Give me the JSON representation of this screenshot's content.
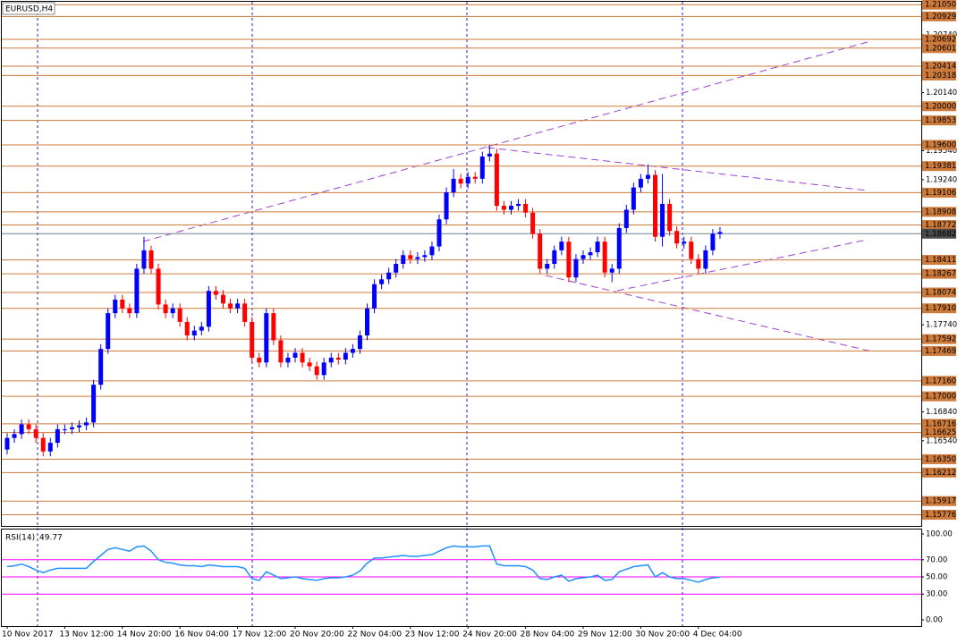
{
  "chart_data": {
    "type": "candlestick",
    "title": "EURUSD,H4",
    "categories": [
      "10 Nov 2017",
      null,
      null,
      null,
      null,
      null,
      null,
      null,
      "13 Nov 12:00",
      null,
      null,
      null,
      null,
      null,
      null,
      null,
      "14 Nov 20:00",
      null,
      null,
      null,
      null,
      null,
      null,
      null,
      "16 Nov 04:00",
      null,
      null,
      null,
      null,
      null,
      null,
      null,
      "17 Nov 12:00",
      null,
      null,
      null,
      null,
      null,
      null,
      null,
      "20 Nov 20:00",
      null,
      null,
      null,
      null,
      null,
      null,
      null,
      "22 Nov 04:00",
      null,
      null,
      null,
      null,
      null,
      null,
      null,
      "23 Nov 12:00",
      null,
      null,
      null,
      null,
      null,
      null,
      null,
      "24 Nov 20:00",
      null,
      null,
      null,
      null,
      null,
      null,
      null,
      "28 Nov 04:00",
      null,
      null,
      null,
      null,
      null,
      null,
      null,
      "29 Nov 12:00",
      null,
      null,
      null,
      null,
      null,
      null,
      null,
      "30 Nov 20:00",
      null,
      null,
      null,
      null,
      null,
      null,
      null,
      "4 Dec 04:00",
      null,
      null,
      null
    ],
    "open": [
      1.1645,
      1.1657,
      1.1661,
      1.1671,
      1.1666,
      1.1657,
      1.1643,
      1.1652,
      1.1666,
      1.1666,
      1.1668,
      1.167,
      1.1673,
      1.1712,
      1.1749,
      1.1786,
      1.18,
      1.1791,
      1.1786,
      1.1832,
      1.1851,
      1.1832,
      1.1795,
      1.1786,
      1.1791,
      1.1777,
      1.1763,
      1.1768,
      1.1772,
      1.1809,
      1.1805,
      1.1796,
      1.1791,
      1.1796,
      1.1777,
      1.174,
      1.1735,
      1.1786,
      1.1758,
      1.1735,
      1.174,
      1.1745,
      1.1735,
      1.1731,
      1.1722,
      1.1735,
      1.174,
      1.1738,
      1.1745,
      1.1749,
      1.1763,
      1.1791,
      1.1816,
      1.1821,
      1.1828,
      1.1837,
      1.1846,
      1.1842,
      1.1844,
      1.1846,
      1.1855,
      1.1883,
      1.1911,
      1.1925,
      1.192,
      1.1927,
      1.1925,
      1.1948,
      1.1951,
      1.1897,
      1.1893,
      1.1897,
      1.1899,
      1.189,
      1.1868,
      1.1832,
      1.1837,
      1.1851,
      1.186,
      1.1823,
      1.1842,
      1.1846,
      1.1849,
      1.186,
      1.1828,
      1.1832,
      1.1874,
      1.1893,
      1.1916,
      1.1925,
      1.1929,
      1.1865,
      1.1899,
      1.1871,
      1.1858,
      1.186,
      1.1842,
      1.1832,
      1.1851,
      1.1868
    ],
    "high": [
      1.1662,
      1.1666,
      1.1676,
      1.1676,
      1.1671,
      1.1662,
      1.1657,
      1.1671,
      1.1671,
      1.1673,
      1.1675,
      1.1678,
      1.1717,
      1.1754,
      1.1791,
      1.1805,
      1.1805,
      1.1796,
      1.1837,
      1.1865,
      1.1856,
      1.1837,
      1.18,
      1.1796,
      1.1796,
      1.1782,
      1.1773,
      1.1777,
      1.1814,
      1.1814,
      1.181,
      1.1801,
      1.1801,
      1.1801,
      1.1782,
      1.1745,
      1.1791,
      1.1791,
      1.1763,
      1.1745,
      1.175,
      1.175,
      1.174,
      1.1736,
      1.174,
      1.1745,
      1.1745,
      1.175,
      1.1754,
      1.1768,
      1.1796,
      1.1821,
      1.1826,
      1.1833,
      1.1842,
      1.1851,
      1.1851,
      1.1849,
      1.1851,
      1.186,
      1.1888,
      1.1916,
      1.1935,
      1.193,
      1.1932,
      1.1932,
      1.1953,
      1.196,
      1.1956,
      1.1902,
      1.1902,
      1.1904,
      1.1904,
      1.1895,
      1.1873,
      1.1842,
      1.1856,
      1.1865,
      1.1865,
      1.1847,
      1.1851,
      1.1854,
      1.1865,
      1.1865,
      1.1837,
      1.1879,
      1.1898,
      1.1921,
      1.193,
      1.194,
      1.1934,
      1.193,
      1.1904,
      1.1876,
      1.1865,
      1.1865,
      1.1847,
      1.1856,
      1.1873,
      1.1875
    ],
    "low": [
      1.164,
      1.1652,
      1.1656,
      1.1661,
      1.1652,
      1.1638,
      1.1638,
      1.1647,
      1.1661,
      1.1661,
      1.1663,
      1.1665,
      1.1668,
      1.1707,
      1.1744,
      1.1781,
      1.1786,
      1.1781,
      1.1781,
      1.1827,
      1.1827,
      1.179,
      1.1781,
      1.1781,
      1.1772,
      1.1758,
      1.1758,
      1.1763,
      1.1767,
      1.18,
      1.1791,
      1.1786,
      1.1786,
      1.1772,
      1.1735,
      1.173,
      1.173,
      1.1753,
      1.173,
      1.173,
      1.1735,
      1.173,
      1.1726,
      1.1717,
      1.1717,
      1.173,
      1.1733,
      1.1733,
      1.174,
      1.1744,
      1.1758,
      1.1786,
      1.1811,
      1.1816,
      1.1823,
      1.1832,
      1.1837,
      1.1837,
      1.1839,
      1.1841,
      1.185,
      1.1878,
      1.1906,
      1.1915,
      1.1915,
      1.192,
      1.192,
      1.1943,
      1.1892,
      1.1888,
      1.1888,
      1.1892,
      1.1885,
      1.1863,
      1.1827,
      1.1827,
      1.1832,
      1.1846,
      1.1818,
      1.1818,
      1.1837,
      1.1841,
      1.1844,
      1.1823,
      1.1818,
      1.1827,
      1.1869,
      1.1888,
      1.1911,
      1.192,
      1.186,
      1.1855,
      1.1866,
      1.1853,
      1.1853,
      1.1837,
      1.1827,
      1.1827,
      1.1846,
      1.1863
    ],
    "close": [
      1.1657,
      1.1661,
      1.1671,
      1.1666,
      1.1657,
      1.1643,
      1.1652,
      1.1666,
      1.1666,
      1.1668,
      1.167,
      1.1673,
      1.1712,
      1.1749,
      1.1786,
      1.18,
      1.1791,
      1.1786,
      1.1832,
      1.1851,
      1.1832,
      1.1795,
      1.1786,
      1.1791,
      1.1777,
      1.1763,
      1.1768,
      1.1772,
      1.1809,
      1.1805,
      1.1796,
      1.1791,
      1.1796,
      1.1777,
      1.174,
      1.1735,
      1.1786,
      1.1758,
      1.1735,
      1.174,
      1.1745,
      1.1735,
      1.1731,
      1.1722,
      1.1735,
      1.174,
      1.1738,
      1.1745,
      1.1749,
      1.1763,
      1.1791,
      1.1816,
      1.1821,
      1.1828,
      1.1837,
      1.1846,
      1.1842,
      1.1844,
      1.1846,
      1.1855,
      1.1883,
      1.1911,
      1.1925,
      1.192,
      1.1927,
      1.1925,
      1.1948,
      1.1951,
      1.1897,
      1.1893,
      1.1897,
      1.1899,
      1.189,
      1.1868,
      1.1832,
      1.1837,
      1.1851,
      1.186,
      1.1823,
      1.1842,
      1.1846,
      1.1849,
      1.186,
      1.1828,
      1.1832,
      1.1874,
      1.1893,
      1.1916,
      1.1925,
      1.1929,
      1.1865,
      1.1899,
      1.1871,
      1.1858,
      1.186,
      1.1842,
      1.1832,
      1.1851,
      1.1868,
      1.187
    ],
    "up_color": "#0000ff",
    "down_color": "#ff0000",
    "ylim": [
      1.1566,
      1.2108
    ],
    "yticks": [
      {
        "value": 1.2074,
        "label": "1.20740"
      },
      {
        "value": 1.2014,
        "label": "1.20140"
      },
      {
        "value": 1.1954,
        "label": "1.19540"
      },
      {
        "value": 1.1924,
        "label": "1.19240"
      },
      {
        "value": 1.1774,
        "label": "1.17740"
      },
      {
        "value": 1.1684,
        "label": "1.16840"
      },
      {
        "value": 1.1654,
        "label": "1.16540"
      }
    ],
    "level_color": "#cd7a3a",
    "levels": [
      {
        "value": 1.2105,
        "label": "1.21050"
      },
      {
        "value": 1.20929,
        "label": "1.20929"
      },
      {
        "value": 1.20692,
        "label": "1.20692"
      },
      {
        "value": 1.20601,
        "label": "1.20601"
      },
      {
        "value": 1.20414,
        "label": "1.20414"
      },
      {
        "value": 1.20318,
        "label": "1.20318"
      },
      {
        "value": 1.2,
        "label": "1.20000"
      },
      {
        "value": 1.19853,
        "label": "1.19853"
      },
      {
        "value": 1.196,
        "label": "1.19600"
      },
      {
        "value": 1.19381,
        "label": "1.19381"
      },
      {
        "value": 1.19106,
        "label": "1.19106"
      },
      {
        "value": 1.18908,
        "label": "1.18908"
      },
      {
        "value": 1.18772,
        "label": "1.18772"
      },
      {
        "value": 1.18411,
        "label": "1.18411"
      },
      {
        "value": 1.18267,
        "label": "1.18267"
      },
      {
        "value": 1.18074,
        "label": "1.18074"
      },
      {
        "value": 1.1791,
        "label": "1.17910"
      },
      {
        "value": 1.17592,
        "label": "1.17592"
      },
      {
        "value": 1.17469,
        "label": "1.17469"
      },
      {
        "value": 1.1716,
        "label": "1.17160"
      },
      {
        "value": 1.17,
        "label": "1.17000"
      },
      {
        "value": 1.16716,
        "label": "1.16716"
      },
      {
        "value": 1.16625,
        "label": "1.16625"
      },
      {
        "value": 1.1635,
        "label": "1.16350"
      },
      {
        "value": 1.16212,
        "label": "1.16212"
      },
      {
        "value": 1.15917,
        "label": "1.15917"
      },
      {
        "value": 1.15776,
        "label": "1.15776"
      }
    ],
    "current_price": {
      "value": 1.18682,
      "label": "1.18682"
    },
    "rsi": {
      "title": "RSI(14)",
      "color": "#1e90ff",
      "level_color": "#ff00ff",
      "values": [
        62,
        63,
        65,
        62,
        58,
        55,
        58,
        60,
        60,
        60,
        60,
        60,
        68,
        75,
        82,
        84,
        82,
        80,
        85,
        86,
        80,
        70,
        67,
        66,
        64,
        63,
        63,
        62,
        64,
        63,
        62,
        62,
        62,
        60,
        48,
        46,
        56,
        52,
        48,
        49,
        50,
        48,
        47,
        46,
        48,
        49,
        49,
        50,
        52,
        57,
        66,
        72,
        72,
        73,
        74,
        75,
        74,
        74,
        75,
        76,
        80,
        84,
        86,
        85,
        85,
        85,
        86,
        86,
        65,
        63,
        63,
        63,
        62,
        58,
        48,
        47,
        50,
        52,
        45,
        48,
        49,
        50,
        52,
        46,
        47,
        56,
        59,
        62,
        63,
        64,
        50,
        55,
        50,
        48,
        48,
        46,
        44,
        47,
        49,
        49.77
      ],
      "ylim": [
        0,
        100
      ],
      "yticks": [
        {
          "value": 100,
          "label": "100.00"
        },
        {
          "value": 70,
          "label": "70.00"
        },
        {
          "value": 50,
          "label": "50.00"
        },
        {
          "value": 30,
          "label": "30.00"
        },
        {
          "value": 0,
          "label": "0.00"
        }
      ],
      "levels": [
        70,
        50,
        30
      ]
    }
  }
}
